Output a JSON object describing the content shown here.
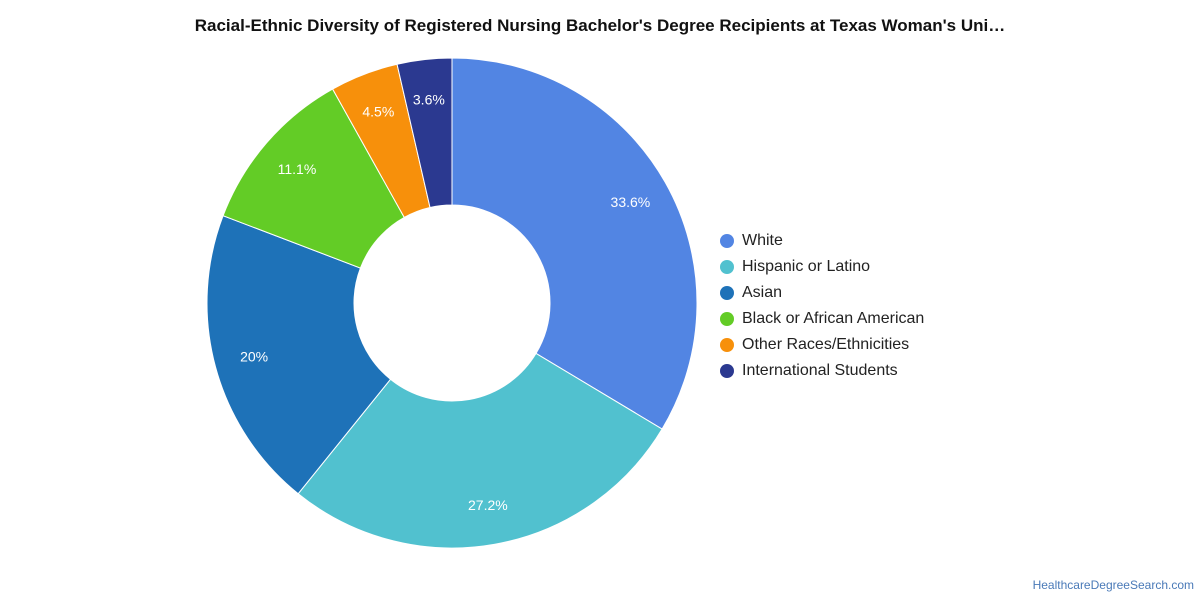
{
  "title": "Racial-Ethnic Diversity of Registered Nursing Bachelor's Degree Recipients at Texas Woman's Uni…",
  "credit": "HealthcareDegreeSearch.com",
  "chart_data": {
    "type": "pie",
    "donut": true,
    "title": "Racial-Ethnic Diversity of Registered Nursing Bachelor's Degree Recipients at Texas Woman's Uni…",
    "legend_position": "right",
    "slices": [
      {
        "label": "White",
        "value": 33.6,
        "display": "33.6%",
        "color": "#5285e3"
      },
      {
        "label": "Hispanic or Latino",
        "value": 27.2,
        "display": "27.2%",
        "color": "#51c1cf"
      },
      {
        "label": "Asian",
        "value": 20.0,
        "display": "20%",
        "color": "#1e72b8"
      },
      {
        "label": "Black or African American",
        "value": 11.1,
        "display": "11.1%",
        "color": "#63cc26"
      },
      {
        "label": "Other Races/Ethnicities",
        "value": 4.5,
        "display": "4.5%",
        "color": "#f7900b"
      },
      {
        "label": "International Students",
        "value": 3.6,
        "display": "3.6%",
        "color": "#2b3990"
      }
    ]
  }
}
